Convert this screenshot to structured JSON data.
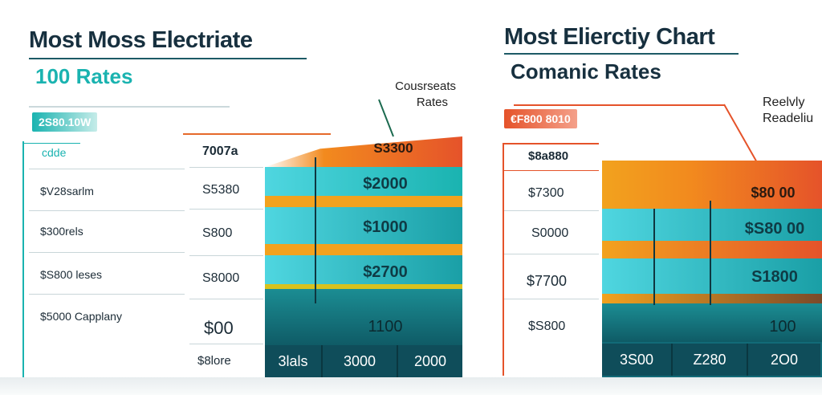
{
  "colors": {
    "teal": "#1ab3b0",
    "dark_teal": "#0f4d5a",
    "cyan": "#4fd6e0",
    "orange": "#f28a1e",
    "red_orange": "#e5532a",
    "title": "#17303f"
  },
  "left": {
    "title": "Most Moss Electriate",
    "subtitle": "100 Rates",
    "note": [
      "Cousrseats",
      "Rates"
    ],
    "badge": "2S80.10W",
    "column_header_left": "cdde",
    "column_header_mid": "7007a",
    "column_header_right": "S3300",
    "rows": [
      {
        "label": "$V28sarlm",
        "value": "S5380",
        "bar": "$2000"
      },
      {
        "label": "$300rels",
        "value": "S800",
        "bar": "$1000"
      },
      {
        "label": "$S800 leses",
        "value": "S8000",
        "bar": "$2700"
      },
      {
        "label": "$5000 Capplany",
        "value": "$00",
        "bar": "1100"
      }
    ],
    "axis_row_label": "$8lore",
    "axis": [
      "3lals",
      "3000",
      "2000"
    ]
  },
  "right": {
    "title": "Most Elierctiy Chart",
    "subtitle": "Comanic Rates",
    "note": [
      "Reelvly",
      "Readeliu"
    ],
    "badge": "€F800 8010",
    "column_header_left": "$8a880",
    "column_header_right": "$80 00",
    "rows": [
      {
        "value": "$7300",
        "bar": "$80 00"
      },
      {
        "value": "S0000",
        "bar": "$S80 00"
      },
      {
        "value": "$7700",
        "bar": "S1800"
      },
      {
        "value": "$S800",
        "bar": "100"
      }
    ],
    "axis": [
      "3S00",
      "Z280",
      "2O0"
    ]
  },
  "chart_data": [
    {
      "type": "table",
      "title": "Most Moss Electriate",
      "subtitle": "100 Rates",
      "categories": [
        "$V28sarlm",
        "$300rels",
        "$S800 leses",
        "$5000 Capplany"
      ],
      "series": [
        {
          "values": [
            "S5380",
            "S800",
            "S8000",
            "$00"
          ]
        },
        {
          "values": [
            "$2000",
            "$1000",
            "$2700",
            "1100"
          ]
        }
      ],
      "x_ticks": [
        "3lals",
        "3000",
        "2000"
      ]
    },
    {
      "type": "table",
      "title": "Most Elierctiy Chart",
      "subtitle": "Comanic Rates",
      "series": [
        {
          "values": [
            "$7300",
            "S0000",
            "$7700",
            "$S800"
          ]
        },
        {
          "values": [
            "$80 00",
            "$S80 00",
            "S1800",
            "100"
          ]
        }
      ],
      "x_ticks": [
        "3S00",
        "Z280",
        "2O0"
      ]
    }
  ]
}
